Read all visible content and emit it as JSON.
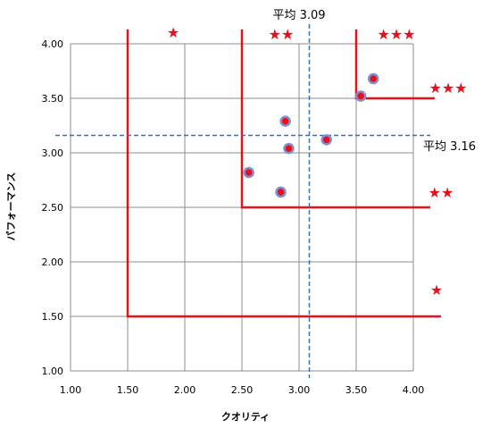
{
  "colors": {
    "grid": "#8c8c8c",
    "plot_border": "#8c8c8c",
    "threshold_line": "#e8101a",
    "average_line": "#2e75b6",
    "point_fill": "#e8101a",
    "point_edge": "#7f8fd0",
    "star": "#e8101a"
  },
  "chart_data": {
    "type": "scatter",
    "title": "",
    "xlabel": "クオリティ",
    "ylabel": "パフォーマンス",
    "xlim": [
      1.0,
      4.0
    ],
    "ylim": [
      1.0,
      4.0
    ],
    "x_ticks": [
      "1.00",
      "1.50",
      "2.00",
      "2.50",
      "3.00",
      "3.50",
      "4.00"
    ],
    "y_ticks": [
      "1.00",
      "1.50",
      "2.00",
      "2.50",
      "3.00",
      "3.50",
      "4.00"
    ],
    "grid": true,
    "points": [
      {
        "x": 2.56,
        "y": 2.82
      },
      {
        "x": 2.84,
        "y": 2.64
      },
      {
        "x": 2.88,
        "y": 3.29
      },
      {
        "x": 2.91,
        "y": 3.04
      },
      {
        "x": 3.24,
        "y": 3.12
      },
      {
        "x": 3.54,
        "y": 3.52
      },
      {
        "x": 3.65,
        "y": 3.68
      }
    ],
    "averages": {
      "x": {
        "value": 3.09,
        "label": "平均 3.09"
      },
      "y": {
        "value": 3.16,
        "label": "平均 3.16"
      }
    },
    "threshold_levels": [
      {
        "level": 1.5,
        "stars": "★"
      },
      {
        "level": 2.5,
        "stars": "★★"
      },
      {
        "level": 3.5,
        "stars": "★★★"
      }
    ]
  }
}
